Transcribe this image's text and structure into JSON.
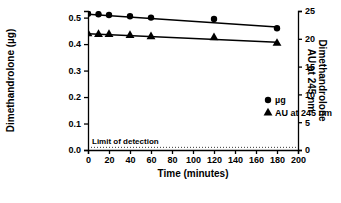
{
  "chart_data": {
    "type": "scatter",
    "x_label": "Time (minutes)",
    "y_label": "Dimethandrolone (µg)",
    "y2_label": [
      "Dimethandrolone",
      "AU at 245 nm"
    ],
    "x": [
      0,
      10,
      20,
      40,
      60,
      120,
      180
    ],
    "xlim": [
      0,
      200
    ],
    "xticks": [
      0,
      20,
      40,
      60,
      80,
      100,
      120,
      140,
      160,
      180,
      200
    ],
    "ylim": [
      0,
      0.525
    ],
    "yticks": [
      {
        "value": 0,
        "label": "0.0"
      },
      {
        "value": 0.1,
        "label": "0.1"
      },
      {
        "value": 0.2,
        "label": "0.2"
      },
      {
        "value": 0.3,
        "label": "0.3"
      },
      {
        "value": 0.4,
        "label": "0.4"
      },
      {
        "value": 0.5,
        "label": "0.5"
      }
    ],
    "y2lim": [
      0,
      25
    ],
    "y2ticks": [
      0,
      5,
      10,
      15,
      20,
      25
    ],
    "series": [
      {
        "name": "µg",
        "color": "#000000",
        "marker": "circle",
        "values": [
          0.515,
          0.513,
          0.51,
          0.505,
          0.5,
          0.495,
          0.46
        ]
      },
      {
        "name": "AU at 245 nm",
        "color": "#000000",
        "marker": "triangle",
        "axis": "y2",
        "values": [
          20.9,
          20.8,
          20.8,
          20.6,
          20.4,
          20.2,
          19.2
        ]
      },
      {
        "type": "line",
        "color": "#000000",
        "line_style": "solid",
        "x": [
          0,
          180
        ],
        "values": [
          0.513,
          0.465
        ]
      },
      {
        "type": "line",
        "color": "#000000",
        "line_style": "solid",
        "axis": "y2",
        "x": [
          0,
          180
        ],
        "values": [
          20.9,
          19.4
        ]
      }
    ],
    "annotations": [
      {
        "text": "Limit of detection",
        "y": 0.01,
        "line_style": "dotted"
      }
    ],
    "legend": "right"
  }
}
